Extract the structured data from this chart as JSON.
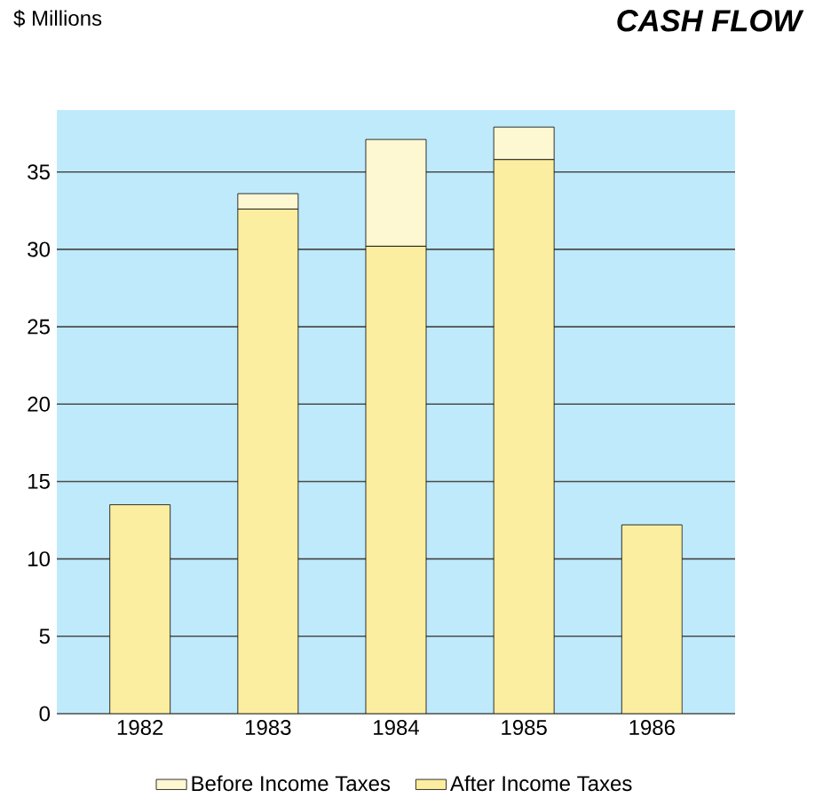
{
  "chart_data": {
    "type": "bar",
    "title": "CASH FLOW",
    "ylabel": "$ Millions",
    "stacked": true,
    "categories": [
      "1982",
      "1983",
      "1984",
      "1985",
      "1986"
    ],
    "series": [
      {
        "name": "After Income Taxes",
        "color": "#fbeea0",
        "values": [
          13.5,
          32.6,
          30.2,
          35.8,
          12.2
        ]
      },
      {
        "name": "Before Income Taxes",
        "color": "#fdf7d2",
        "values": [
          0,
          1.0,
          6.9,
          2.1,
          0
        ]
      }
    ],
    "ylim": [
      0,
      39
    ],
    "yticks": [
      0,
      5,
      10,
      15,
      20,
      25,
      30,
      35
    ],
    "grid": "y",
    "legend": "bottom"
  }
}
